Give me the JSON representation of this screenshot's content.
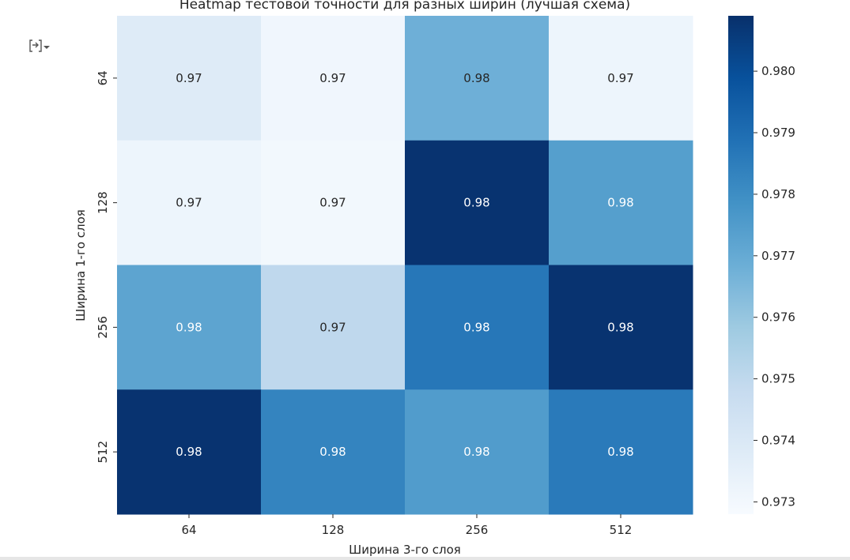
{
  "chart_data": {
    "type": "heatmap",
    "title": "Heatmap тестовой точности для разных ширин (лучшая схема)",
    "xlabel": "Ширина 3-го слоя",
    "ylabel": "Ширина 1-го слоя",
    "x_categories": [
      "64",
      "128",
      "256",
      "512"
    ],
    "y_categories": [
      "64",
      "128",
      "256",
      "512"
    ],
    "values": [
      [
        0.9738,
        0.9731,
        0.9768,
        0.9732
      ],
      [
        0.9732,
        0.973,
        0.9808,
        0.9774
      ],
      [
        0.9772,
        0.975,
        0.9787,
        0.9808
      ],
      [
        0.9808,
        0.9783,
        0.9775,
        0.9786
      ]
    ],
    "cell_labels": [
      [
        "0.97",
        "0.97",
        "0.98",
        "0.97"
      ],
      [
        "0.97",
        "0.97",
        "0.98",
        "0.98"
      ],
      [
        "0.98",
        "0.97",
        "0.98",
        "0.98"
      ],
      [
        "0.98",
        "0.98",
        "0.98",
        "0.98"
      ]
    ],
    "colormap": "Blues",
    "color_range": [
      0.9728,
      0.9809
    ],
    "colorbar_ticks": [
      "0.973",
      "0.974",
      "0.975",
      "0.976",
      "0.977",
      "0.978",
      "0.979",
      "0.980"
    ],
    "colorbar_tick_values": [
      0.973,
      0.974,
      0.975,
      0.976,
      0.977,
      0.978,
      0.979,
      0.98
    ]
  },
  "ui": {
    "output_toggle_icon": "output-toggle-icon"
  }
}
